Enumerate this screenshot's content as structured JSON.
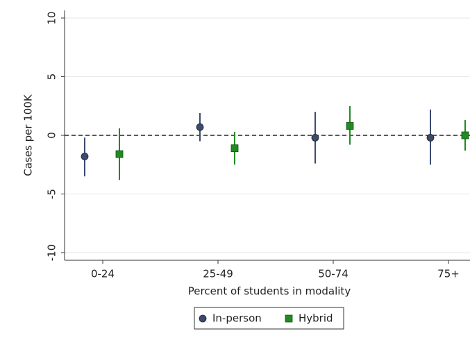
{
  "chart_data": {
    "type": "errorbar",
    "xlabel": "Percent of students in modality",
    "ylabel": "Cases per 100K",
    "categories": [
      "0-24",
      "25-49",
      "50-74",
      "75+"
    ],
    "series": [
      {
        "name": "In-person",
        "color": "#3b4a6f",
        "marker": "circle",
        "values": [
          -1.8,
          0.7,
          -0.2,
          -0.2
        ],
        "lower": [
          -3.5,
          -0.5,
          -2.4,
          -2.5
        ],
        "upper": [
          -0.2,
          1.9,
          2.0,
          2.2
        ]
      },
      {
        "name": "Hybrid",
        "color": "#218a21",
        "marker": "square",
        "values": [
          -1.6,
          -1.1,
          0.8,
          0.0
        ],
        "lower": [
          -3.8,
          -2.5,
          -0.8,
          -1.3
        ],
        "upper": [
          0.6,
          0.3,
          2.5,
          1.3
        ]
      }
    ],
    "ylim": [
      -10.65,
      10.65
    ],
    "yticks": [
      -10,
      -5,
      0,
      5,
      10
    ],
    "grid": true,
    "refline": 0,
    "legend": "bottom"
  }
}
